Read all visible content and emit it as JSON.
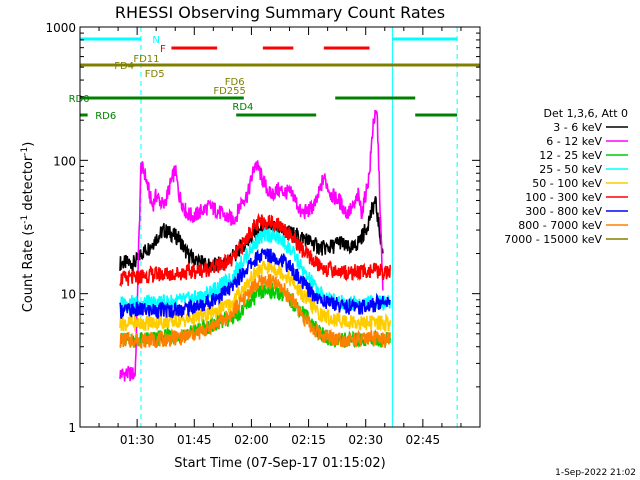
{
  "chart_data": {
    "type": "line",
    "title": "RHESSI Observing Summary Count Rates",
    "xlabel": "Start Time (07-Sep-17 01:15:02)",
    "ylabel_main": "Count Rate (s",
    "ylabel_sup1": "-1",
    "ylabel_mid": " detector",
    "ylabel_sup2": "-1",
    "ylabel_end": ")",
    "yscale": "log",
    "ylim": [
      1,
      1000
    ],
    "xlim_minutes": [
      0,
      105
    ],
    "x_ticks": [
      {
        "t": 15,
        "label": "01:30"
      },
      {
        "t": 30,
        "label": "01:45"
      },
      {
        "t": 45,
        "label": "02:00"
      },
      {
        "t": 60,
        "label": "02:15"
      },
      {
        "t": 75,
        "label": "02:30"
      },
      {
        "t": 90,
        "label": "02:45"
      }
    ],
    "y_ticks": [
      {
        "v": 1,
        "label": "1"
      },
      {
        "v": 10,
        "label": "10"
      },
      {
        "v": 100,
        "label": "100"
      },
      {
        "v": 1000,
        "label": "1000"
      }
    ],
    "legend_title": "Det 1,3,6, Att 0",
    "series": [
      {
        "name": "3 - 6 keV",
        "color": "#000000",
        "x": [
          10.5,
          14.5,
          16,
          18,
          20,
          22,
          24,
          26,
          28,
          30,
          34,
          38,
          41,
          42.5,
          43,
          44,
          46,
          48,
          50,
          53,
          56,
          59,
          61,
          63,
          65,
          67,
          68,
          70,
          72,
          75,
          77.5,
          79.5
        ],
        "y": [
          17,
          17,
          20,
          22,
          26,
          30,
          28,
          26,
          20,
          18,
          16,
          17,
          20,
          23,
          22,
          25,
          28,
          30,
          31,
          30,
          28,
          26,
          24,
          22,
          22,
          23,
          25,
          22,
          22,
          30,
          50,
          20
        ]
      },
      {
        "name": "6 - 12 keV",
        "color": "#ff00ff",
        "x": [
          10.5,
          14.5,
          16,
          17,
          18,
          19,
          20,
          22,
          24,
          25,
          26,
          28,
          30,
          32,
          34,
          36,
          38,
          40,
          41,
          42.5,
          44,
          46,
          47,
          48,
          50,
          52,
          54,
          56,
          58,
          60,
          62,
          64,
          66,
          68,
          70,
          72,
          73,
          74,
          76,
          77,
          78,
          79.5
        ],
        "y": [
          2.5,
          2.5,
          90,
          80,
          60,
          45,
          55,
          45,
          70,
          85,
          55,
          40,
          38,
          42,
          45,
          42,
          38,
          36,
          38,
          50,
          55,
          95,
          85,
          70,
          55,
          60,
          58,
          55,
          40,
          42,
          48,
          75,
          55,
          50,
          40,
          45,
          55,
          40,
          80,
          200,
          220,
          10
        ]
      },
      {
        "name": "12 - 25 keV",
        "color": "#00cc00",
        "x": [
          10.5,
          14.5,
          16,
          20,
          24,
          28,
          32,
          36,
          40,
          41,
          43,
          45,
          47,
          49,
          51,
          53,
          55,
          57,
          59,
          61,
          63,
          66,
          70,
          74,
          77,
          79.5,
          81.5
        ],
        "y": [
          4.5,
          4.5,
          4.5,
          4.6,
          4.8,
          5.0,
          5.5,
          6.0,
          6.5,
          7.0,
          7.5,
          9.0,
          10.0,
          10.5,
          10.5,
          10.0,
          9.0,
          8.0,
          7.0,
          6.0,
          5.0,
          4.5,
          4.5,
          4.5,
          4.6,
          4.5,
          4.5
        ]
      },
      {
        "name": "25 - 50 keV",
        "color": "#00ffff",
        "x": [
          10.5,
          14.5,
          16,
          20,
          24,
          28,
          32,
          36,
          40,
          41,
          43,
          45,
          47,
          49,
          51,
          53,
          55,
          57,
          59,
          61,
          63,
          66,
          70,
          74,
          77,
          79.5,
          81.5
        ],
        "y": [
          8.5,
          8.5,
          8.5,
          8.5,
          8.7,
          9.0,
          9.5,
          11,
          13,
          15,
          18,
          22,
          26,
          28,
          27,
          25,
          22,
          18,
          14,
          12,
          10,
          9.0,
          8.5,
          8.5,
          8.6,
          8.5,
          8.5
        ]
      },
      {
        "name": "50 - 100 keV",
        "color": "#ffcc00",
        "x": [
          10.5,
          14.5,
          16,
          20,
          24,
          28,
          32,
          36,
          40,
          41,
          43,
          45,
          47,
          49,
          51,
          53,
          55,
          57,
          59,
          61,
          63,
          66,
          70,
          74,
          77,
          79.5,
          81.5
        ],
        "y": [
          6.0,
          6.0,
          6.0,
          6.1,
          6.2,
          6.4,
          6.8,
          7.5,
          8.5,
          9.5,
          11,
          13,
          15,
          16,
          15.5,
          14.5,
          13,
          11,
          9.5,
          8.0,
          7.0,
          6.5,
          6.2,
          6.0,
          6.1,
          6.0,
          6.0
        ]
      },
      {
        "name": "100 - 300 keV",
        "color": "#ff0000",
        "x": [
          10.5,
          14.5,
          16,
          20,
          24,
          28,
          32,
          36,
          40,
          41,
          43,
          45,
          47,
          49,
          51,
          53,
          55,
          57,
          59,
          61,
          63,
          66,
          70,
          74,
          77,
          79.5,
          81.5
        ],
        "y": [
          13,
          13,
          13.5,
          14,
          14,
          14.5,
          15,
          16,
          18,
          20,
          24,
          30,
          34,
          35,
          34,
          32,
          28,
          24,
          20,
          18,
          16,
          15,
          14.5,
          14.5,
          15,
          14.5,
          14.5
        ]
      },
      {
        "name": "300 - 800 keV",
        "color": "#0000ff",
        "x": [
          10.5,
          14.5,
          16,
          20,
          24,
          28,
          32,
          36,
          40,
          41,
          43,
          45,
          47,
          49,
          51,
          53,
          55,
          57,
          59,
          61,
          63,
          66,
          70,
          74,
          77,
          79.5,
          81.5
        ],
        "y": [
          7.5,
          7.5,
          7.5,
          7.5,
          7.5,
          7.8,
          8.2,
          9.5,
          11,
          12.5,
          14.5,
          17,
          19,
          20,
          19,
          18,
          16,
          13.5,
          11.5,
          10,
          9.0,
          8.5,
          8.0,
          8.0,
          8.2,
          9.0,
          9.0
        ]
      },
      {
        "name": "800 - 7000 keV",
        "color": "#ff8000",
        "x": [
          10.5,
          14.5,
          16,
          20,
          24,
          28,
          32,
          36,
          40,
          41,
          43,
          45,
          47,
          49,
          51,
          53,
          55,
          57,
          59,
          61,
          63,
          66,
          70,
          74,
          77,
          79.5,
          81.5
        ],
        "y": [
          4.5,
          4.5,
          4.5,
          4.5,
          4.6,
          4.8,
          5.2,
          6.0,
          7.0,
          8.0,
          9.0,
          11,
          12,
          12.5,
          12,
          11,
          9.5,
          8.0,
          6.5,
          5.5,
          5.0,
          4.7,
          4.5,
          4.5,
          4.6,
          4.5,
          4.5
        ]
      },
      {
        "name": "7000 - 15000 keV",
        "color": "#808000",
        "x": [],
        "y": []
      }
    ],
    "flag_bars": [
      {
        "label": "N",
        "label_t": 19,
        "label_y": 40,
        "label_color": "#00ffff",
        "color": "#00ffff",
        "segments": [
          [
            0,
            16
          ],
          [
            82,
            99
          ]
        ]
      },
      {
        "label": "F",
        "label_t": 21,
        "label_y": 49,
        "label_color": "#ff0000",
        "color": "#ff0000",
        "segments": [
          [
            24,
            36
          ],
          [
            48,
            56
          ],
          [
            64,
            76
          ]
        ]
      },
      {
        "label": "FD11",
        "label_t": 14,
        "label_y": 59,
        "label_color": "#808000",
        "color": "#808000",
        "segments": []
      },
      {
        "label": "FD4",
        "label_t": 9,
        "label_y": 66,
        "label_color": "#808000",
        "color": "#808000",
        "segments": [
          [
            0,
            105
          ]
        ]
      },
      {
        "label": "FD5",
        "label_t": 17,
        "label_y": 74,
        "label_color": "#808000",
        "color": "#808000",
        "segments": []
      },
      {
        "label": "FD6",
        "label_t": 38,
        "label_y": 82,
        "label_color": "#808000",
        "color": "#808000",
        "segments": []
      },
      {
        "label": "FD255",
        "label_t": 35,
        "label_y": 91,
        "label_color": "#808000",
        "color": "#808000",
        "segments": []
      },
      {
        "label": "RD0",
        "label_t": -3,
        "label_y": 99,
        "label_color": "#008000",
        "color": "#008000",
        "segments": [
          [
            0,
            43
          ],
          [
            67,
            88
          ]
        ]
      },
      {
        "label": "RD4",
        "label_t": 40,
        "label_y": 107,
        "label_color": "#008000",
        "color": "#008000",
        "segments": []
      },
      {
        "label": "RD6",
        "label_t": 4,
        "label_y": 116,
        "label_color": "#008000",
        "color": "#008000",
        "segments": [
          [
            0,
            2
          ],
          [
            41,
            62
          ],
          [
            88,
            99
          ]
        ]
      }
    ],
    "vertical_markers": [
      {
        "t": 0,
        "style": "solid",
        "color": "#00ffff"
      },
      {
        "t": 16,
        "style": "dashed",
        "color": "#00ffff"
      },
      {
        "t": 82,
        "style": "solid",
        "color": "#00ffff"
      },
      {
        "t": 99,
        "style": "dashed",
        "color": "#00ffff"
      }
    ],
    "footer_date": "1-Sep-2022 21:02"
  }
}
